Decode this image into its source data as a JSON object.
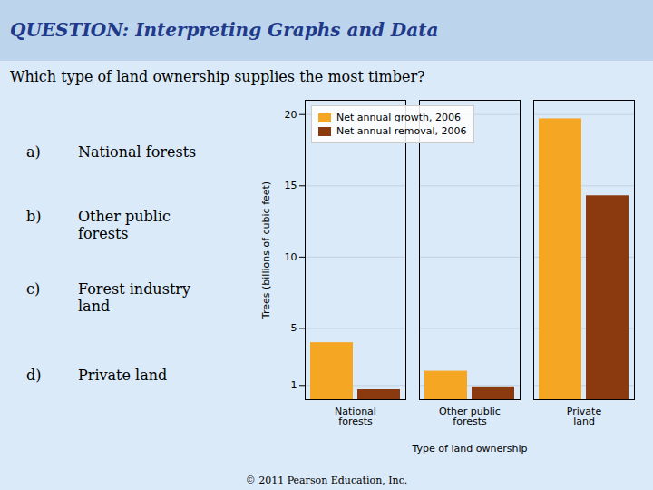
{
  "chart_data": {
    "type": "bar",
    "title": "QUESTION: Interpreting Graphs and Data",
    "categories": [
      "National\nforests",
      "Other public\nforests",
      "Private\nland"
    ],
    "series": [
      {
        "name": "Net annual growth, 2006",
        "color": "#F5A623",
        "values": [
          4.0,
          2.0,
          19.7
        ]
      },
      {
        "name": "Net annual removal, 2006",
        "color": "#8B3A0F",
        "values": [
          0.7,
          0.9,
          14.3
        ]
      }
    ],
    "xlabel": "Type of land ownership",
    "ylabel": "Trees (billions of cubic feet)",
    "ylim": [
      0,
      21
    ],
    "yticks": [
      1,
      5,
      10,
      15,
      20
    ],
    "grid": true,
    "legend": "upper-left",
    "annotations": [
      "Which type of land ownership supplies the most timber?",
      "a)",
      "National forests",
      "b)",
      "Other public\nforests",
      "c)",
      "Forest industry\nland",
      "d)",
      "Private land",
      "© 2011 Pearson Education, Inc."
    ]
  }
}
